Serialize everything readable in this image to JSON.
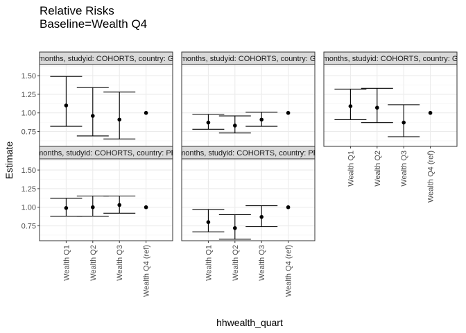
{
  "chart_data": {
    "type": "scatter",
    "subtype": "faceted point estimates with error bars",
    "title": "Relative Risks",
    "subtitle": "Baseline=Wealth Q4",
    "xlabel": "hhwealth_quart",
    "ylabel": "Estimate",
    "categories": [
      "Wealth Q1",
      "Wealth Q2",
      "Wealth Q3",
      "Wealth Q4 (ref)"
    ],
    "ylim": [
      0.55,
      1.65
    ],
    "yticks": [
      0.75,
      1.0,
      1.25,
      1.5
    ],
    "ytick_labels": [
      "0.75",
      "1.00",
      "1.25",
      "1.50"
    ],
    "grid": true,
    "panels": [
      {
        "strip_label": "months, studyid: COHORTS, country: G",
        "points": [
          {
            "est": 1.1,
            "lo": 0.82,
            "hi": 1.49
          },
          {
            "est": 0.96,
            "lo": 0.69,
            "hi": 1.34
          },
          {
            "est": 0.91,
            "lo": 0.65,
            "hi": 1.28
          },
          {
            "est": 1.0,
            "lo": null,
            "hi": null
          }
        ]
      },
      {
        "strip_label": "months, studyid: COHORTS, country: G",
        "points": [
          {
            "est": 0.87,
            "lo": 0.78,
            "hi": 0.98
          },
          {
            "est": 0.83,
            "lo": 0.73,
            "hi": 0.96
          },
          {
            "est": 0.91,
            "lo": 0.82,
            "hi": 1.01
          },
          {
            "est": 1.0,
            "lo": null,
            "hi": null
          }
        ]
      },
      {
        "strip_label": "months, studyid: COHORTS, country: G",
        "points": [
          {
            "est": 1.09,
            "lo": 0.91,
            "hi": 1.32
          },
          {
            "est": 1.07,
            "lo": 0.87,
            "hi": 1.33
          },
          {
            "est": 0.87,
            "lo": 0.68,
            "hi": 1.11
          },
          {
            "est": 1.0,
            "lo": null,
            "hi": null
          }
        ]
      },
      {
        "strip_label": "months, studyid: COHORTS, country: Ph",
        "points": [
          {
            "est": 0.99,
            "lo": 0.88,
            "hi": 1.12
          },
          {
            "est": 1.0,
            "lo": 0.88,
            "hi": 1.15
          },
          {
            "est": 1.03,
            "lo": 0.92,
            "hi": 1.15
          },
          {
            "est": 1.0,
            "lo": null,
            "hi": null
          }
        ]
      },
      {
        "strip_label": "months, studyid: COHORTS, country: Ph",
        "points": [
          {
            "est": 0.8,
            "lo": 0.67,
            "hi": 0.97
          },
          {
            "est": 0.72,
            "lo": 0.57,
            "hi": 0.9
          },
          {
            "est": 0.87,
            "lo": 0.74,
            "hi": 1.02
          },
          {
            "est": 1.0,
            "lo": null,
            "hi": null
          }
        ]
      }
    ]
  }
}
